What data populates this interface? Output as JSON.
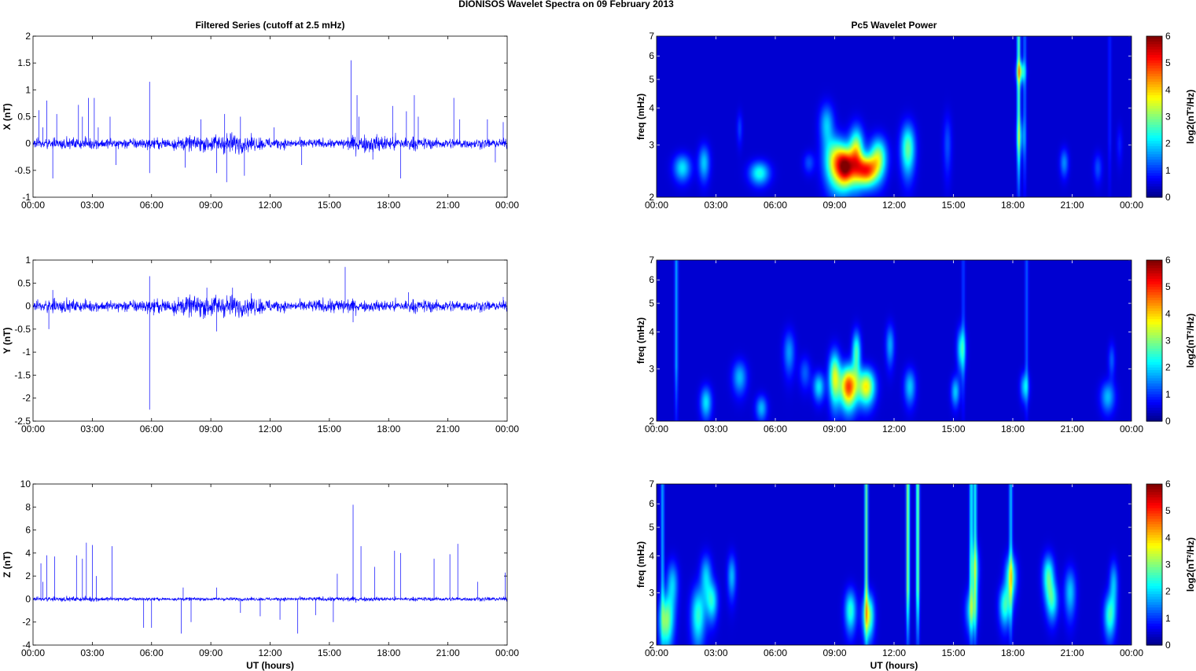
{
  "figure_title": "DIONISOS Wavelet Spectra on 09 February  2013",
  "colors": {
    "trace": "#0000ff",
    "spectrum_background": "#00008f",
    "colormap": "jet"
  },
  "chart_data": [
    {
      "id": "x-series",
      "type": "line",
      "title": "Filtered Series (cutoff at 2.5 mHz)",
      "xlabel": "",
      "ylabel": "X (nT)",
      "xticks": [
        "00:00",
        "03:00",
        "06:00",
        "09:00",
        "12:00",
        "15:00",
        "18:00",
        "21:00",
        "00:00"
      ],
      "xlim_hours": [
        0,
        24
      ],
      "ylim": [
        -1,
        2
      ],
      "yticks": [
        "2",
        "1.5",
        "1",
        "0.5",
        "0",
        "-0.5",
        "-1"
      ],
      "noise_profile": [
        [
          0,
          0.06
        ],
        [
          2.5,
          0.07
        ],
        [
          6,
          0.07
        ],
        [
          8.5,
          0.1
        ],
        [
          10,
          0.14
        ],
        [
          11.2,
          0.09
        ],
        [
          13,
          0.06
        ],
        [
          15.5,
          0.06
        ],
        [
          16.5,
          0.12
        ],
        [
          18.5,
          0.1
        ],
        [
          20,
          0.07
        ],
        [
          24,
          0.06
        ]
      ],
      "spikes": [
        [
          0.3,
          0.62
        ],
        [
          0.5,
          0.3
        ],
        [
          0.7,
          0.8
        ],
        [
          1.0,
          -0.65
        ],
        [
          1.2,
          0.55
        ],
        [
          2.3,
          0.72
        ],
        [
          2.5,
          0.5
        ],
        [
          2.8,
          0.85
        ],
        [
          3.1,
          0.85
        ],
        [
          3.3,
          0.3
        ],
        [
          3.9,
          0.5
        ],
        [
          4.2,
          -0.4
        ],
        [
          5.9,
          1.15
        ],
        [
          5.9,
          -0.55
        ],
        [
          7.7,
          -0.45
        ],
        [
          8.5,
          0.45
        ],
        [
          9.3,
          -0.55
        ],
        [
          9.7,
          0.55
        ],
        [
          9.8,
          -0.72
        ],
        [
          10.5,
          0.5
        ],
        [
          10.7,
          -0.6
        ],
        [
          12.2,
          0.3
        ],
        [
          13.6,
          -0.4
        ],
        [
          16.1,
          1.55
        ],
        [
          16.4,
          0.9
        ],
        [
          16.5,
          0.5
        ],
        [
          17.2,
          -0.3
        ],
        [
          18.2,
          0.7
        ],
        [
          18.6,
          -0.65
        ],
        [
          18.9,
          0.6
        ],
        [
          19.3,
          0.9
        ],
        [
          19.5,
          0.5
        ],
        [
          21.3,
          0.85
        ],
        [
          21.6,
          0.45
        ],
        [
          23.0,
          0.45
        ],
        [
          23.4,
          -0.35
        ],
        [
          23.8,
          0.4
        ]
      ]
    },
    {
      "id": "x-spectrum",
      "type": "heatmap",
      "title": "Pc5 Wavelet Power",
      "xlabel": "",
      "ylabel": "freq (mHz)",
      "xticks": [
        "00:00",
        "03:00",
        "06:00",
        "09:00",
        "12:00",
        "15:00",
        "18:00",
        "21:00",
        "00:00"
      ],
      "xlim_hours": [
        0,
        24
      ],
      "ylim": [
        2,
        7
      ],
      "y_scale": "log",
      "yticks": [
        "7",
        "6",
        "5",
        "4",
        "3",
        "2"
      ],
      "colorbar": {
        "label": "log2(nT²/Hz)",
        "min": 0,
        "max": 6,
        "ticks": [
          "6",
          "5",
          "4",
          "3",
          "2",
          "1",
          "0"
        ]
      },
      "blobs": [
        [
          1.3,
          2.5,
          0.3,
          0.18,
          1.8
        ],
        [
          2.4,
          2.6,
          0.2,
          0.25,
          1.6
        ],
        [
          5.2,
          2.4,
          0.35,
          0.15,
          2.1
        ],
        [
          4.2,
          3.4,
          0.1,
          0.3,
          0.7
        ],
        [
          7.7,
          2.6,
          0.2,
          0.15,
          0.8
        ],
        [
          8.6,
          3.5,
          0.25,
          0.4,
          1.6
        ],
        [
          9.1,
          2.6,
          0.4,
          0.35,
          3.8
        ],
        [
          9.6,
          2.5,
          0.3,
          0.25,
          4.2
        ],
        [
          10.1,
          2.8,
          0.25,
          0.4,
          3.4
        ],
        [
          10.6,
          2.45,
          0.35,
          0.2,
          4.6
        ],
        [
          11.2,
          2.7,
          0.3,
          0.3,
          3.0
        ],
        [
          12.7,
          2.9,
          0.25,
          0.4,
          2.6
        ],
        [
          14.7,
          3.0,
          0.15,
          0.5,
          0.8
        ],
        [
          18.4,
          5.3,
          0.15,
          0.3,
          2.4
        ],
        [
          18.4,
          3.2,
          0.15,
          0.3,
          1.0
        ],
        [
          20.6,
          2.6,
          0.15,
          0.2,
          1.2
        ],
        [
          22.3,
          2.5,
          0.15,
          0.2,
          0.8
        ],
        [
          23.4,
          3.0,
          0.1,
          0.3,
          0.5
        ]
      ],
      "streaks": [
        [
          18.3,
          2.5
        ],
        [
          18.6,
          1.0
        ],
        [
          22.9,
          0.5
        ]
      ]
    },
    {
      "id": "y-series",
      "type": "line",
      "title": "",
      "xlabel": "",
      "ylabel": "Y (nT)",
      "xticks": [
        "00:00",
        "03:00",
        "06:00",
        "09:00",
        "12:00",
        "15:00",
        "18:00",
        "21:00",
        "00:00"
      ],
      "xlim_hours": [
        0,
        24
      ],
      "ylim": [
        -2.5,
        1
      ],
      "yticks": [
        "1",
        "0.5",
        "0",
        "-0.5",
        "-1",
        "-1.5",
        "-2",
        "-2.5"
      ],
      "noise_profile": [
        [
          0,
          0.07
        ],
        [
          1,
          0.1
        ],
        [
          3,
          0.08
        ],
        [
          6,
          0.1
        ],
        [
          9,
          0.18
        ],
        [
          11,
          0.14
        ],
        [
          13,
          0.07
        ],
        [
          15.5,
          0.12
        ],
        [
          17,
          0.08
        ],
        [
          19,
          0.1
        ],
        [
          24,
          0.07
        ]
      ],
      "spikes": [
        [
          0.8,
          -0.5
        ],
        [
          1.0,
          0.35
        ],
        [
          5.9,
          0.65
        ],
        [
          5.9,
          -2.25
        ],
        [
          6.1,
          -0.2
        ],
        [
          8.8,
          0.4
        ],
        [
          9.3,
          -0.55
        ],
        [
          10.1,
          0.4
        ],
        [
          15.8,
          0.85
        ],
        [
          16.2,
          -0.35
        ],
        [
          19.0,
          0.3
        ],
        [
          23.8,
          0.2
        ]
      ]
    },
    {
      "id": "y-spectrum",
      "type": "heatmap",
      "title": "",
      "xlabel": "",
      "ylabel": "freq (mHz)",
      "xticks": [
        "00:00",
        "03:00",
        "06:00",
        "09:00",
        "12:00",
        "15:00",
        "18:00",
        "21:00",
        "00:00"
      ],
      "xlim_hours": [
        0,
        24
      ],
      "ylim": [
        2,
        7
      ],
      "y_scale": "log",
      "yticks": [
        "7",
        "6",
        "5",
        "4",
        "3",
        "2"
      ],
      "colorbar": {
        "label": "log2(nT²/Hz)",
        "min": 0,
        "max": 6,
        "ticks": [
          "6",
          "5",
          "4",
          "3",
          "2",
          "1",
          "0"
        ]
      },
      "blobs": [
        [
          2.5,
          2.3,
          0.2,
          0.2,
          1.8
        ],
        [
          4.2,
          2.8,
          0.25,
          0.25,
          1.5
        ],
        [
          5.3,
          2.2,
          0.2,
          0.15,
          1.5
        ],
        [
          6.7,
          3.4,
          0.2,
          0.4,
          1.3
        ],
        [
          7.5,
          2.9,
          0.2,
          0.25,
          0.9
        ],
        [
          8.2,
          2.6,
          0.2,
          0.2,
          1.8
        ],
        [
          9.0,
          2.8,
          0.2,
          0.4,
          3.2
        ],
        [
          9.7,
          2.6,
          0.3,
          0.3,
          4.8
        ],
        [
          10.1,
          3.4,
          0.15,
          0.4,
          2.4
        ],
        [
          10.6,
          2.6,
          0.3,
          0.25,
          3.6
        ],
        [
          11.8,
          3.6,
          0.15,
          0.4,
          1.4
        ],
        [
          12.8,
          2.6,
          0.2,
          0.25,
          1.6
        ],
        [
          15.1,
          2.5,
          0.15,
          0.2,
          1.6
        ],
        [
          15.4,
          3.5,
          0.15,
          0.4,
          2.0
        ],
        [
          18.6,
          2.6,
          0.15,
          0.2,
          1.6
        ],
        [
          22.8,
          2.4,
          0.25,
          0.2,
          1.5
        ],
        [
          23.0,
          3.2,
          0.12,
          0.3,
          0.9
        ]
      ],
      "streaks": [
        [
          1.0,
          1.4
        ],
        [
          15.5,
          0.7
        ],
        [
          18.7,
          0.9
        ]
      ]
    },
    {
      "id": "z-series",
      "type": "line",
      "title": "",
      "xlabel": "UT (hours)",
      "ylabel": "Z (nT)",
      "xticks": [
        "00:00",
        "03:00",
        "06:00",
        "09:00",
        "12:00",
        "15:00",
        "18:00",
        "21:00",
        "00:00"
      ],
      "xlim_hours": [
        0,
        24
      ],
      "ylim": [
        -4,
        10
      ],
      "yticks": [
        "10",
        "8",
        "6",
        "4",
        "2",
        "0",
        "-2",
        "-4"
      ],
      "noise_profile": [
        [
          0,
          0.12
        ],
        [
          3,
          0.15
        ],
        [
          6,
          0.1
        ],
        [
          12,
          0.1
        ],
        [
          16,
          0.15
        ],
        [
          18,
          0.12
        ],
        [
          24,
          0.12
        ]
      ],
      "spikes": [
        [
          0.4,
          3.1
        ],
        [
          0.5,
          1.5
        ],
        [
          0.7,
          3.8
        ],
        [
          1.1,
          3.7
        ],
        [
          2.2,
          3.8
        ],
        [
          2.5,
          3.5
        ],
        [
          2.7,
          4.9
        ],
        [
          3.0,
          4.7
        ],
        [
          3.2,
          2.0
        ],
        [
          4.0,
          4.6
        ],
        [
          5.6,
          -2.5
        ],
        [
          6.0,
          -2.5
        ],
        [
          7.5,
          -3.0
        ],
        [
          7.6,
          1.0
        ],
        [
          8.0,
          -2.0
        ],
        [
          9.3,
          1.0
        ],
        [
          10.5,
          -1.2
        ],
        [
          11.5,
          -1.5
        ],
        [
          12.5,
          -1.8
        ],
        [
          13.4,
          -3.0
        ],
        [
          14.3,
          -1.4
        ],
        [
          15.2,
          -2.0
        ],
        [
          15.4,
          2.2
        ],
        [
          16.2,
          8.2
        ],
        [
          16.6,
          4.6
        ],
        [
          17.3,
          2.8
        ],
        [
          18.3,
          4.2
        ],
        [
          18.6,
          4.0
        ],
        [
          20.3,
          3.5
        ],
        [
          21.1,
          3.9
        ],
        [
          21.5,
          4.8
        ],
        [
          22.5,
          1.5
        ],
        [
          23.9,
          2.3
        ]
      ]
    },
    {
      "id": "z-spectrum",
      "type": "heatmap",
      "title": "",
      "xlabel": "UT (hours)",
      "ylabel": "freq (mHz)",
      "xticks": [
        "00:00",
        "03:00",
        "06:00",
        "09:00",
        "12:00",
        "15:00",
        "18:00",
        "21:00",
        "00:00"
      ],
      "xlim_hours": [
        0,
        24
      ],
      "ylim": [
        2,
        7
      ],
      "y_scale": "log",
      "yticks": [
        "7",
        "6",
        "5",
        "4",
        "3",
        "2"
      ],
      "colorbar": {
        "label": "log2(nT²/Hz)",
        "min": 0,
        "max": 6,
        "ticks": [
          "6",
          "5",
          "4",
          "3",
          "2",
          "1",
          "0"
        ]
      },
      "blobs": [
        [
          0.5,
          2.4,
          0.25,
          0.35,
          2.8
        ],
        [
          0.8,
          3.2,
          0.2,
          0.4,
          1.6
        ],
        [
          2.1,
          2.5,
          0.25,
          0.4,
          2.2
        ],
        [
          2.5,
          3.4,
          0.2,
          0.4,
          1.6
        ],
        [
          2.8,
          2.8,
          0.2,
          0.3,
          2.0
        ],
        [
          3.8,
          3.4,
          0.15,
          0.4,
          1.5
        ],
        [
          9.8,
          2.6,
          0.2,
          0.3,
          2.2
        ],
        [
          10.7,
          2.5,
          0.2,
          0.3,
          3.0
        ],
        [
          15.9,
          2.6,
          0.2,
          0.3,
          1.8
        ],
        [
          16.1,
          3.6,
          0.15,
          0.5,
          1.4
        ],
        [
          17.6,
          2.7,
          0.2,
          0.3,
          2.2
        ],
        [
          17.9,
          3.4,
          0.2,
          0.4,
          2.4
        ],
        [
          19.8,
          3.4,
          0.2,
          0.4,
          2.4
        ],
        [
          20.0,
          2.8,
          0.2,
          0.3,
          1.9
        ],
        [
          20.9,
          3.0,
          0.2,
          0.4,
          1.6
        ],
        [
          22.9,
          2.5,
          0.2,
          0.3,
          2.2
        ],
        [
          23.1,
          3.2,
          0.15,
          0.4,
          1.5
        ]
      ],
      "streaks": [
        [
          0.3,
          1.4
        ],
        [
          10.6,
          2.6
        ],
        [
          12.7,
          3.0
        ],
        [
          13.2,
          2.8
        ],
        [
          15.9,
          2.0
        ],
        [
          16.1,
          2.0
        ],
        [
          17.9,
          1.6
        ]
      ]
    }
  ]
}
